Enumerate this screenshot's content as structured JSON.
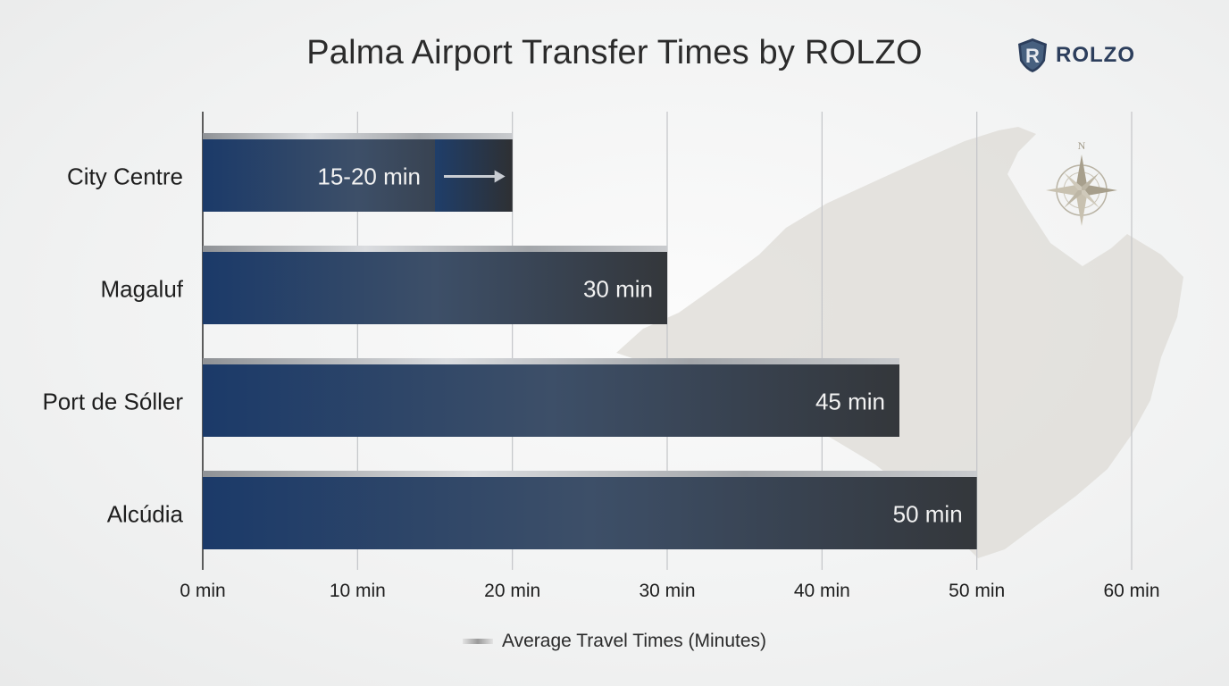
{
  "title": "Palma Airport Transfer Times by ROLZO",
  "brand": {
    "name": "ROLZO",
    "icon": "shield-r-logo"
  },
  "compass": {
    "letter": "N",
    "icon": "compass-rose-icon"
  },
  "legend": {
    "label": "Average Travel Times (Minutes)"
  },
  "colors": {
    "bar_start": "#1c3a66",
    "bar_end": "#3a3d42",
    "cap": "#b9bbbe",
    "grid": "#c6c8cb",
    "map": "#dcdad4"
  },
  "chart_data": {
    "type": "bar",
    "orientation": "horizontal",
    "title": "Palma Airport Transfer Times by ROLZO",
    "xlabel": "",
    "ylabel": "",
    "categories": [
      "City Centre",
      "Magaluf",
      "Port de Sóller",
      "Alcúdia"
    ],
    "series": [
      {
        "name": "Average Travel Times (Minutes)",
        "values": [
          20,
          30,
          45,
          50
        ],
        "range_low": [
          15,
          null,
          null,
          null
        ],
        "labels": [
          "15-20 min",
          "30 min",
          "45 min",
          "50 min"
        ]
      }
    ],
    "xlim": [
      0,
      60
    ],
    "xticks": [
      0,
      10,
      20,
      30,
      40,
      50,
      60
    ],
    "xtick_labels": [
      "0 min",
      "10 min",
      "20 min",
      "30 min",
      "40 min",
      "50 min",
      "60 min"
    ],
    "grid": true,
    "legend_position": "bottom-center"
  }
}
